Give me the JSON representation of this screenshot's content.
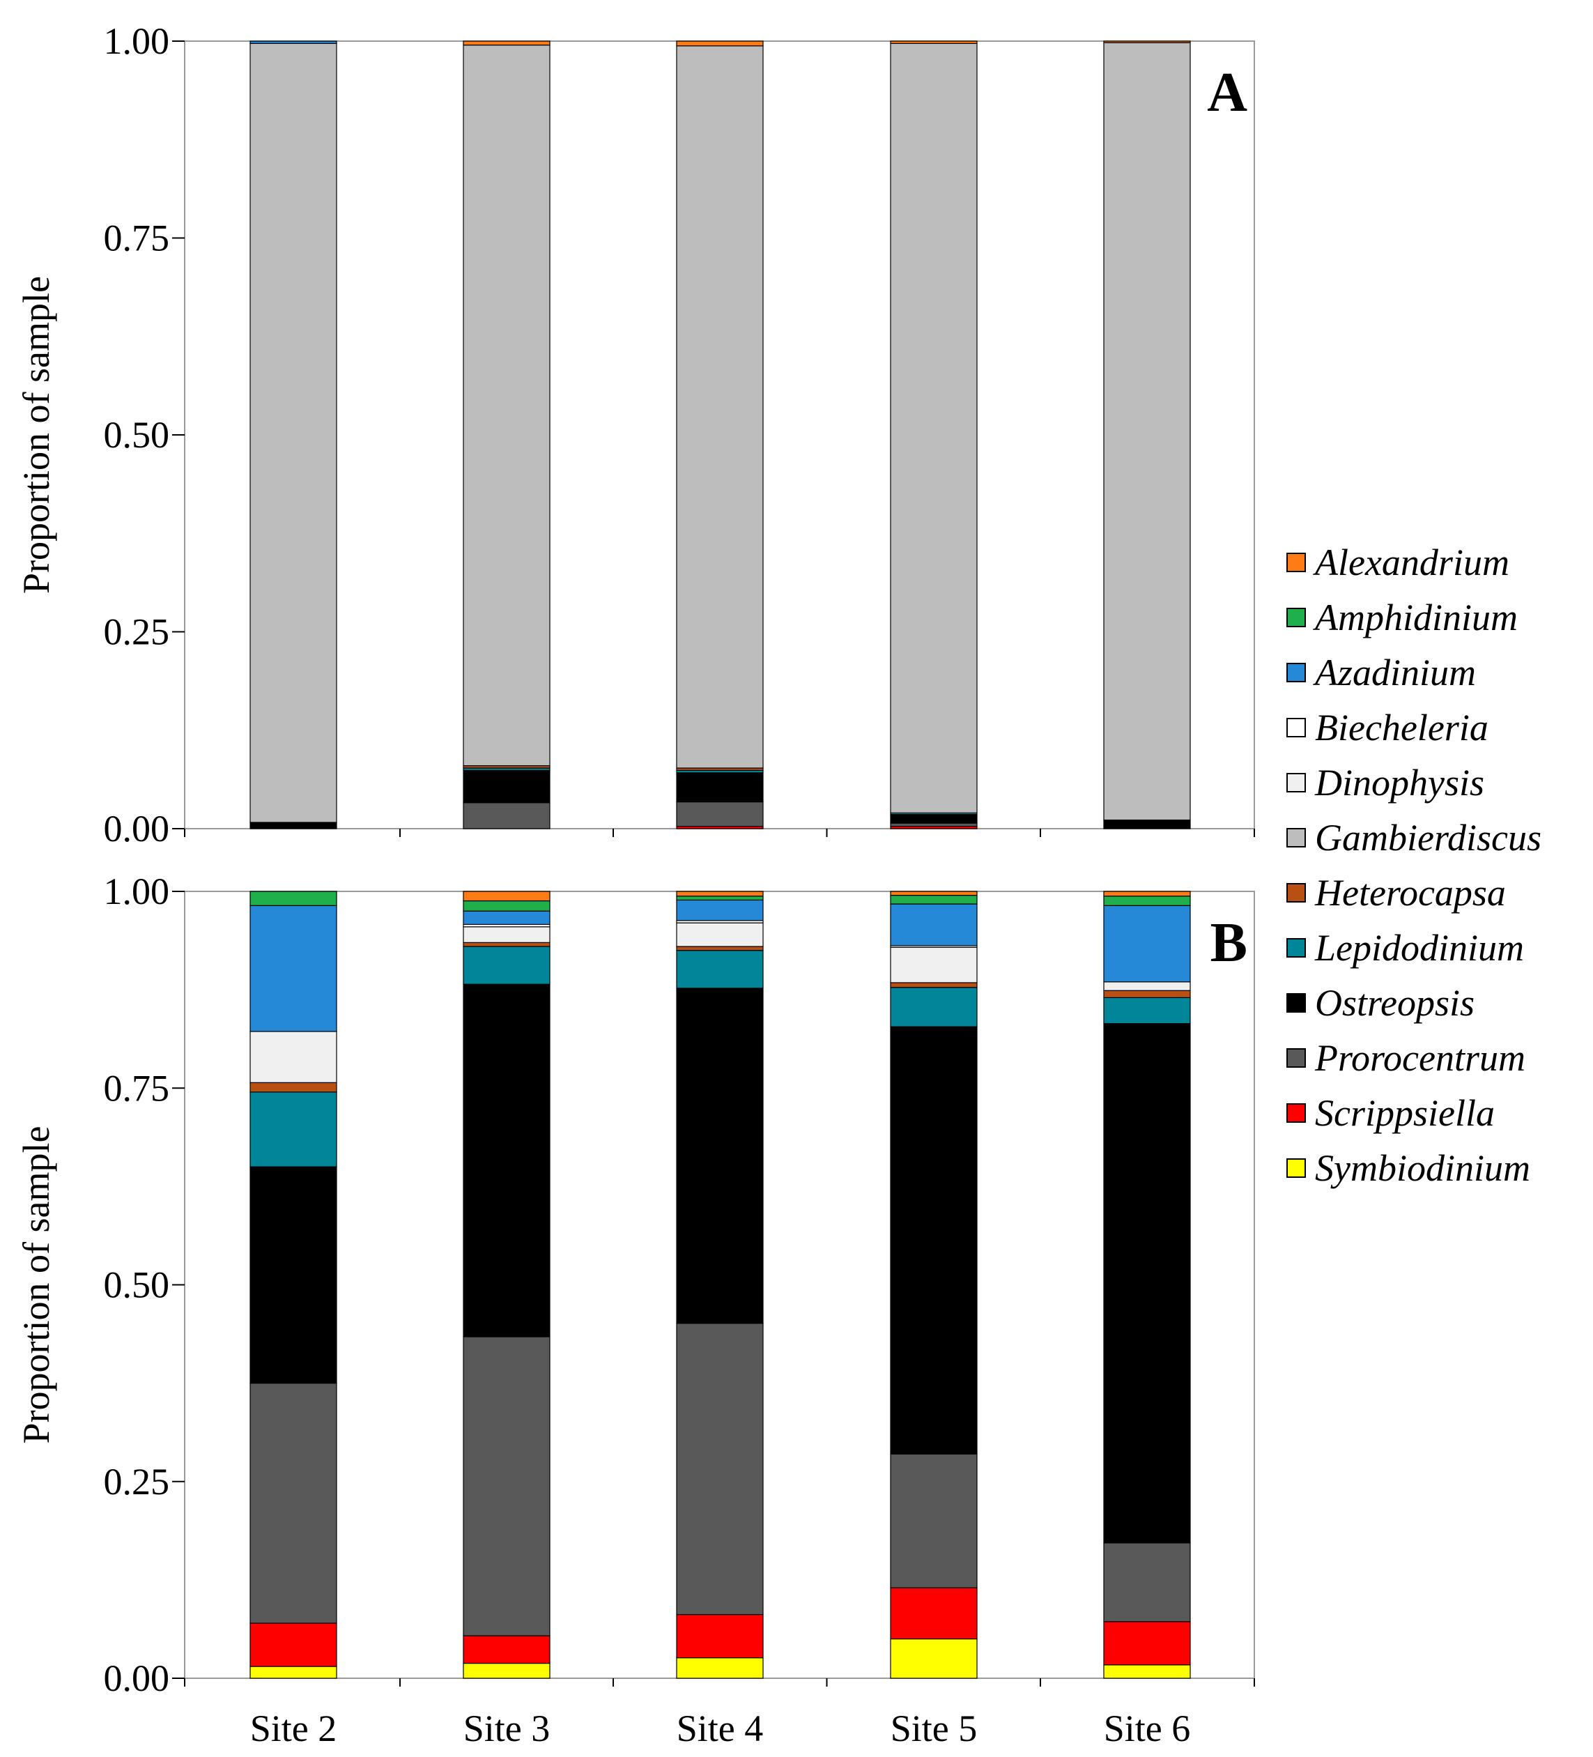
{
  "chart_data": [
    {
      "type": "bar",
      "stacked": true,
      "panel_label": "A",
      "ylabel": "Proportion of sample",
      "ylim": [
        0,
        1
      ],
      "yticks": [
        "0.00",
        "0.25",
        "0.50",
        "0.75",
        "1.00"
      ],
      "categories": [
        "Site 2",
        "Site 3",
        "Site 4",
        "Site 5",
        "Site 6"
      ],
      "series": [
        {
          "name": "Symbiodinium",
          "values": [
            0.0,
            0.0,
            0.0,
            0.0,
            0.0
          ]
        },
        {
          "name": "Scrippsiella",
          "values": [
            0.0,
            0.0,
            0.003,
            0.003,
            0.0
          ]
        },
        {
          "name": "Prorocentrum",
          "values": [
            0.0,
            0.033,
            0.031,
            0.004,
            0.0
          ]
        },
        {
          "name": "Ostreopsis",
          "values": [
            0.008,
            0.041,
            0.037,
            0.011,
            0.011
          ]
        },
        {
          "name": "Lepidodinium",
          "values": [
            0.0,
            0.003,
            0.003,
            0.002,
            0.0
          ]
        },
        {
          "name": "Heterocapsa",
          "values": [
            0.0,
            0.003,
            0.003,
            0.0,
            0.0
          ]
        },
        {
          "name": "Gambierdiscus",
          "values": [
            0.989,
            0.915,
            0.917,
            0.977,
            0.987
          ]
        },
        {
          "name": "Dinophysis",
          "values": [
            0.0,
            0.0,
            0.0,
            0.0,
            0.0
          ]
        },
        {
          "name": "Biecheleria",
          "values": [
            0.0,
            0.0,
            0.0,
            0.0,
            0.0
          ]
        },
        {
          "name": "Azadinium",
          "values": [
            0.003,
            0.0,
            0.0,
            0.0,
            0.0
          ]
        },
        {
          "name": "Amphidinium",
          "values": [
            0.0,
            0.0,
            0.0,
            0.0,
            0.0
          ]
        },
        {
          "name": "Alexandrium",
          "values": [
            0.0,
            0.005,
            0.006,
            0.003,
            0.002
          ]
        }
      ]
    },
    {
      "type": "bar",
      "stacked": true,
      "panel_label": "B",
      "ylabel": "Proportion of sample",
      "ylim": [
        0,
        1
      ],
      "yticks": [
        "0.00",
        "0.25",
        "0.50",
        "0.75",
        "1.00"
      ],
      "categories": [
        "Site 2",
        "Site 3",
        "Site 4",
        "Site 5",
        "Site 6"
      ],
      "series": [
        {
          "name": "Symbiodinium",
          "values": [
            0.015,
            0.019,
            0.026,
            0.05,
            0.017
          ]
        },
        {
          "name": "Scrippsiella",
          "values": [
            0.055,
            0.035,
            0.055,
            0.065,
            0.055
          ]
        },
        {
          "name": "Prorocentrum",
          "values": [
            0.305,
            0.38,
            0.37,
            0.17,
            0.1
          ]
        },
        {
          "name": "Ostreopsis",
          "values": [
            0.275,
            0.448,
            0.426,
            0.543,
            0.66
          ]
        },
        {
          "name": "Lepidodinium",
          "values": [
            0.095,
            0.048,
            0.048,
            0.05,
            0.033
          ]
        },
        {
          "name": "Heterocapsa",
          "values": [
            0.012,
            0.005,
            0.005,
            0.006,
            0.009
          ]
        },
        {
          "name": "Gambierdiscus",
          "values": [
            0.0,
            0.0,
            0.0,
            0.0,
            0.0
          ]
        },
        {
          "name": "Dinophysis",
          "values": [
            0.065,
            0.02,
            0.03,
            0.045,
            0.011
          ]
        },
        {
          "name": "Biecheleria",
          "values": [
            0.0,
            0.003,
            0.003,
            0.002,
            0.0
          ]
        },
        {
          "name": "Azadinium",
          "values": [
            0.16,
            0.017,
            0.026,
            0.053,
            0.097
          ]
        },
        {
          "name": "Amphidinium",
          "values": [
            0.018,
            0.013,
            0.005,
            0.011,
            0.012
          ]
        },
        {
          "name": "Alexandrium",
          "values": [
            0.0,
            0.012,
            0.006,
            0.005,
            0.006
          ]
        }
      ]
    }
  ],
  "legend": [
    {
      "name": "Alexandrium",
      "color": "#ff7b16"
    },
    {
      "name": "Amphidinium",
      "color": "#20b04b"
    },
    {
      "name": "Azadinium",
      "color": "#2589d8"
    },
    {
      "name": "Biecheleria",
      "color": "#ffffff"
    },
    {
      "name": "Dinophysis",
      "color": "#f0f0f0"
    },
    {
      "name": "Gambierdiscus",
      "color": "#bdbdbd"
    },
    {
      "name": "Heterocapsa",
      "color": "#b85014"
    },
    {
      "name": "Lepidodinium",
      "color": "#008599"
    },
    {
      "name": "Ostreopsis",
      "color": "#000000"
    },
    {
      "name": "Prorocentrum",
      "color": "#595959"
    },
    {
      "name": "Scrippsiella",
      "color": "#ff0000"
    },
    {
      "name": "Symbiodinium",
      "color": "#ffff00"
    }
  ]
}
